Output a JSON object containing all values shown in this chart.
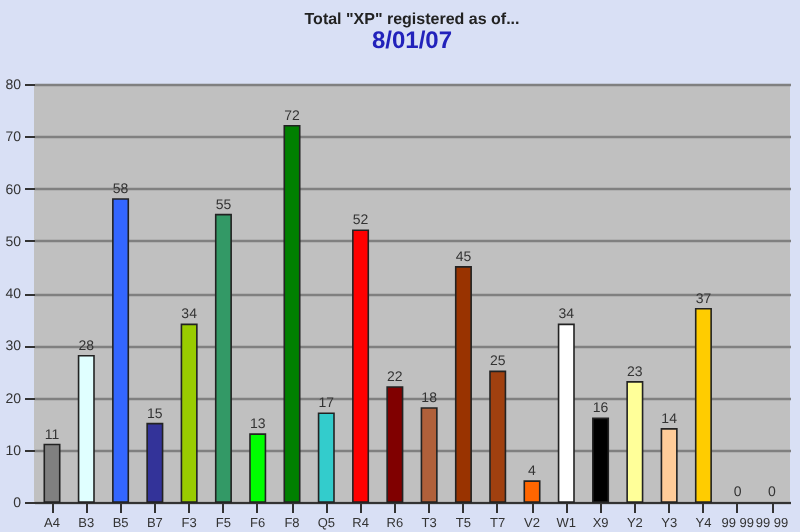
{
  "chart_data": {
    "type": "bar",
    "title": "Total \"XP\" registered as of...",
    "subtitle": "8/01/07",
    "categories": [
      "A4",
      "B3",
      "B5",
      "B7",
      "F3",
      "F5",
      "F6",
      "F8",
      "Q5",
      "R4",
      "R6",
      "T3",
      "T5",
      "T7",
      "V2",
      "W1",
      "X9",
      "Y2",
      "Y3",
      "Y4",
      "99 99",
      "99 99"
    ],
    "values": [
      11,
      28,
      58,
      15,
      34,
      55,
      13,
      72,
      17,
      52,
      22,
      18,
      45,
      25,
      4,
      34,
      16,
      23,
      14,
      37,
      0,
      0
    ],
    "colors": [
      "#808080",
      "#e0ffff",
      "#3366ff",
      "#333399",
      "#99cc00",
      "#339966",
      "#00ff00",
      "#008000",
      "#33cccc",
      "#ff0000",
      "#800000",
      "#b0603a",
      "#993300",
      "#a0400f",
      "#ff6600",
      "#ffffff",
      "#000000",
      "#ffff99",
      "#ffcc99",
      "#ffcc00",
      "#c0c0c0",
      "#c0c0c0"
    ],
    "ylim": [
      0,
      80
    ],
    "yticks": [
      0,
      10,
      20,
      30,
      40,
      50,
      60,
      70,
      80
    ],
    "grid": "y",
    "data_labels": true
  }
}
